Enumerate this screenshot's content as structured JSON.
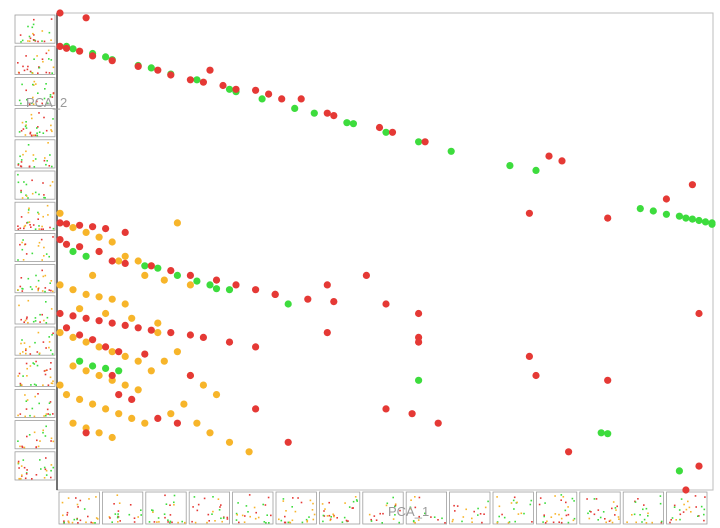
{
  "chart_data": {
    "type": "scatter",
    "title": "",
    "xlabel": "PCA_1",
    "ylabel": "PCA_2",
    "grid": false,
    "legend": "none",
    "colors": {
      "red": "#e53935",
      "green": "#3ddc3d",
      "orange": "#f7b52a",
      "frame": "#9e9e9e",
      "axis": "#444444"
    },
    "series": [
      {
        "color": "red",
        "points": [
          [
            0.0,
            1.0
          ],
          [
            0.04,
            0.99
          ],
          [
            0.0,
            0.93
          ],
          [
            0.01,
            0.926
          ],
          [
            0.03,
            0.92
          ],
          [
            0.05,
            0.91
          ],
          [
            0.08,
            0.9
          ],
          [
            0.12,
            0.888
          ],
          [
            0.15,
            0.88
          ],
          [
            0.17,
            0.87
          ],
          [
            0.2,
            0.86
          ],
          [
            0.22,
            0.855
          ],
          [
            0.25,
            0.848
          ],
          [
            0.27,
            0.84
          ],
          [
            0.3,
            0.838
          ],
          [
            0.32,
            0.83
          ],
          [
            0.34,
            0.82
          ],
          [
            0.23,
            0.88
          ],
          [
            0.37,
            0.82
          ],
          [
            0.41,
            0.79
          ],
          [
            0.42,
            0.785
          ],
          [
            0.49,
            0.76
          ],
          [
            0.51,
            0.75
          ],
          [
            0.56,
            0.73
          ],
          [
            0.75,
            0.7
          ],
          [
            0.77,
            0.69
          ],
          [
            0.97,
            0.64
          ],
          [
            0.93,
            0.61
          ],
          [
            0.84,
            0.57
          ],
          [
            0.72,
            0.58
          ],
          [
            0.0,
            0.56
          ],
          [
            0.01,
            0.558
          ],
          [
            0.03,
            0.555
          ],
          [
            0.05,
            0.552
          ],
          [
            0.07,
            0.548
          ],
          [
            0.1,
            0.54
          ],
          [
            0.0,
            0.525
          ],
          [
            0.01,
            0.515
          ],
          [
            0.03,
            0.51
          ],
          [
            0.06,
            0.5
          ],
          [
            0.08,
            0.48
          ],
          [
            0.1,
            0.475
          ],
          [
            0.14,
            0.47
          ],
          [
            0.17,
            0.46
          ],
          [
            0.2,
            0.45
          ],
          [
            0.24,
            0.44
          ],
          [
            0.27,
            0.43
          ],
          [
            0.3,
            0.42
          ],
          [
            0.33,
            0.41
          ],
          [
            0.38,
            0.4
          ],
          [
            0.42,
            0.395
          ],
          [
            0.41,
            0.43
          ],
          [
            0.47,
            0.45
          ],
          [
            0.5,
            0.39
          ],
          [
            0.55,
            0.37
          ],
          [
            0.0,
            0.37
          ],
          [
            0.02,
            0.365
          ],
          [
            0.04,
            0.36
          ],
          [
            0.06,
            0.355
          ],
          [
            0.08,
            0.35
          ],
          [
            0.1,
            0.345
          ],
          [
            0.12,
            0.34
          ],
          [
            0.14,
            0.335
          ],
          [
            0.17,
            0.33
          ],
          [
            0.2,
            0.325
          ],
          [
            0.22,
            0.32
          ],
          [
            0.26,
            0.31
          ],
          [
            0.01,
            0.34
          ],
          [
            0.03,
            0.325
          ],
          [
            0.05,
            0.315
          ],
          [
            0.07,
            0.3
          ],
          [
            0.09,
            0.29
          ],
          [
            0.13,
            0.285
          ],
          [
            0.3,
            0.3
          ],
          [
            0.41,
            0.33
          ],
          [
            0.33,
            0.41
          ],
          [
            0.55,
            0.32
          ],
          [
            0.55,
            0.31
          ],
          [
            0.72,
            0.28
          ],
          [
            0.73,
            0.24
          ],
          [
            0.84,
            0.23
          ],
          [
            0.98,
            0.37
          ],
          [
            0.08,
            0.24
          ],
          [
            0.04,
            0.12
          ],
          [
            0.09,
            0.2
          ],
          [
            0.11,
            0.19
          ],
          [
            0.15,
            0.15
          ],
          [
            0.18,
            0.14
          ],
          [
            0.2,
            0.24
          ],
          [
            0.3,
            0.17
          ],
          [
            0.35,
            0.1
          ],
          [
            0.5,
            0.17
          ],
          [
            0.58,
            0.14
          ],
          [
            0.54,
            0.16
          ],
          [
            0.78,
            0.08
          ],
          [
            0.98,
            0.05
          ],
          [
            0.96,
            0.0
          ]
        ]
      },
      {
        "color": "green",
        "points": [
          [
            0.01,
            0.93
          ],
          [
            0.02,
            0.925
          ],
          [
            0.05,
            0.915
          ],
          [
            0.07,
            0.908
          ],
          [
            0.08,
            0.902
          ],
          [
            0.12,
            0.89
          ],
          [
            0.14,
            0.885
          ],
          [
            0.17,
            0.872
          ],
          [
            0.21,
            0.86
          ],
          [
            0.26,
            0.84
          ],
          [
            0.27,
            0.835
          ],
          [
            0.31,
            0.82
          ],
          [
            0.36,
            0.8
          ],
          [
            0.39,
            0.79
          ],
          [
            0.44,
            0.77
          ],
          [
            0.45,
            0.768
          ],
          [
            0.5,
            0.75
          ],
          [
            0.55,
            0.73
          ],
          [
            0.6,
            0.71
          ],
          [
            0.69,
            0.68
          ],
          [
            0.73,
            0.67
          ],
          [
            0.89,
            0.59
          ],
          [
            0.91,
            0.585
          ],
          [
            0.93,
            0.578
          ],
          [
            0.95,
            0.574
          ],
          [
            0.96,
            0.57
          ],
          [
            0.97,
            0.568
          ],
          [
            0.98,
            0.565
          ],
          [
            0.99,
            0.562
          ],
          [
            1.0,
            0.56
          ],
          [
            1.0,
            0.557
          ],
          [
            0.02,
            0.5
          ],
          [
            0.04,
            0.49
          ],
          [
            0.13,
            0.47
          ],
          [
            0.15,
            0.465
          ],
          [
            0.18,
            0.45
          ],
          [
            0.21,
            0.438
          ],
          [
            0.23,
            0.43
          ],
          [
            0.24,
            0.422
          ],
          [
            0.26,
            0.42
          ],
          [
            0.35,
            0.39
          ],
          [
            0.03,
            0.27
          ],
          [
            0.05,
            0.26
          ],
          [
            0.07,
            0.255
          ],
          [
            0.09,
            0.25
          ],
          [
            0.55,
            0.23
          ],
          [
            0.83,
            0.12
          ],
          [
            0.84,
            0.118
          ],
          [
            0.95,
            0.04
          ]
        ]
      },
      {
        "color": "orange",
        "points": [
          [
            0.0,
            0.58
          ],
          [
            0.02,
            0.55
          ],
          [
            0.04,
            0.54
          ],
          [
            0.06,
            0.53
          ],
          [
            0.08,
            0.52
          ],
          [
            0.06,
            0.5
          ],
          [
            0.1,
            0.49
          ],
          [
            0.12,
            0.48
          ],
          [
            0.14,
            0.47
          ],
          [
            0.13,
            0.45
          ],
          [
            0.16,
            0.44
          ],
          [
            0.2,
            0.43
          ],
          [
            0.0,
            0.43
          ],
          [
            0.02,
            0.42
          ],
          [
            0.04,
            0.41
          ],
          [
            0.06,
            0.405
          ],
          [
            0.08,
            0.4
          ],
          [
            0.1,
            0.39
          ],
          [
            0.03,
            0.38
          ],
          [
            0.07,
            0.37
          ],
          [
            0.11,
            0.36
          ],
          [
            0.15,
            0.35
          ],
          [
            0.0,
            0.33
          ],
          [
            0.02,
            0.32
          ],
          [
            0.04,
            0.31
          ],
          [
            0.06,
            0.3
          ],
          [
            0.08,
            0.29
          ],
          [
            0.1,
            0.28
          ],
          [
            0.12,
            0.27
          ],
          [
            0.02,
            0.26
          ],
          [
            0.04,
            0.25
          ],
          [
            0.06,
            0.24
          ],
          [
            0.08,
            0.23
          ],
          [
            0.1,
            0.22
          ],
          [
            0.12,
            0.21
          ],
          [
            0.0,
            0.22
          ],
          [
            0.01,
            0.2
          ],
          [
            0.03,
            0.19
          ],
          [
            0.05,
            0.18
          ],
          [
            0.07,
            0.17
          ],
          [
            0.09,
            0.16
          ],
          [
            0.11,
            0.15
          ],
          [
            0.13,
            0.14
          ],
          [
            0.02,
            0.14
          ],
          [
            0.04,
            0.13
          ],
          [
            0.06,
            0.12
          ],
          [
            0.08,
            0.11
          ],
          [
            0.14,
            0.25
          ],
          [
            0.16,
            0.27
          ],
          [
            0.18,
            0.29
          ],
          [
            0.2,
            0.24
          ],
          [
            0.22,
            0.22
          ],
          [
            0.24,
            0.2
          ],
          [
            0.19,
            0.18
          ],
          [
            0.17,
            0.16
          ],
          [
            0.21,
            0.14
          ],
          [
            0.23,
            0.12
          ],
          [
            0.26,
            0.1
          ],
          [
            0.29,
            0.08
          ],
          [
            0.15,
            0.33
          ],
          [
            0.05,
            0.45
          ],
          [
            0.09,
            0.48
          ],
          [
            0.18,
            0.56
          ]
        ]
      }
    ],
    "thumbnails": {
      "left_count": 15,
      "bottom_count": 15
    }
  }
}
